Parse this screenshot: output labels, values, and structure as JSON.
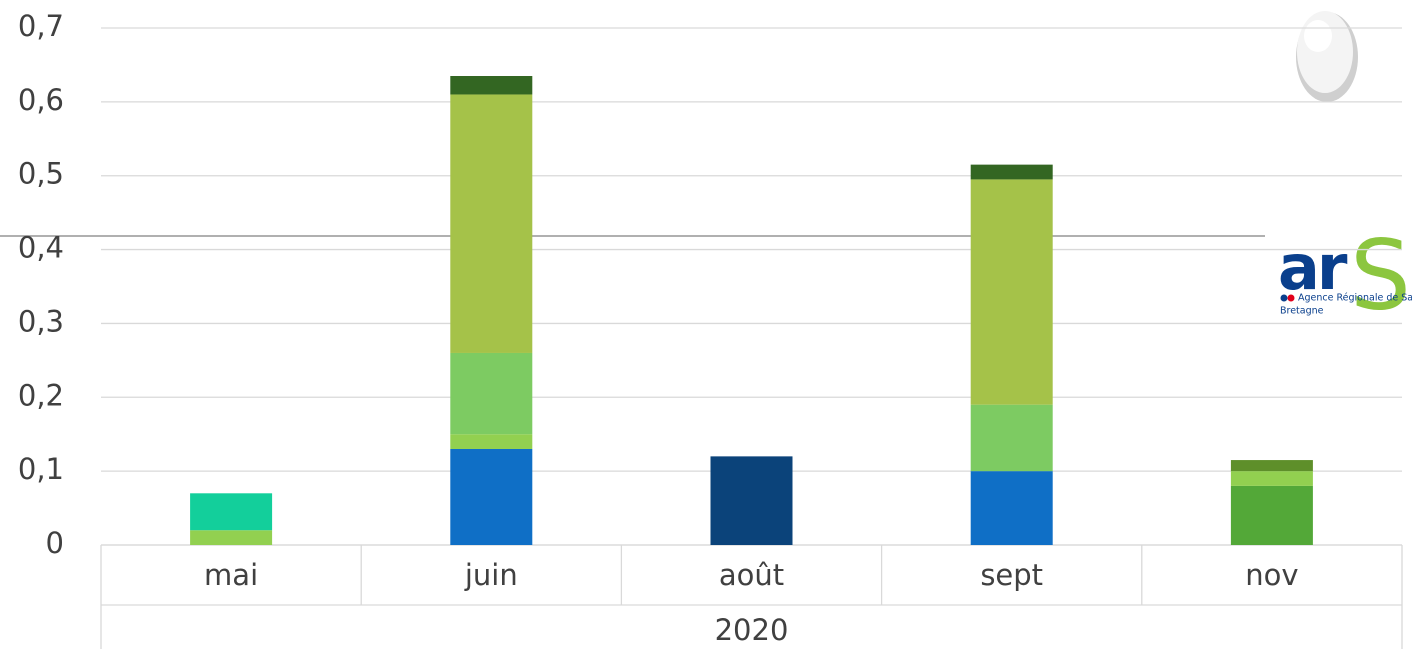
{
  "chart_data": {
    "type": "stacked_bar",
    "categories": [
      "mai",
      "juin",
      "août",
      "sept",
      "nov"
    ],
    "group_label": "2020",
    "series": [
      {
        "color": "#0f6fc6",
        "values": [
          null,
          0.13,
          null,
          0.1,
          null
        ]
      },
      {
        "color": "#0b437a",
        "values": [
          null,
          null,
          0.12,
          null,
          null
        ]
      },
      {
        "color": "#53a838",
        "values": [
          null,
          null,
          null,
          null,
          0.08
        ]
      },
      {
        "color": "#92d050",
        "values": [
          0.02,
          0.02,
          null,
          null,
          0.02
        ]
      },
      {
        "color": "#7dcb62",
        "values": [
          null,
          0.11,
          null,
          0.09,
          null
        ]
      },
      {
        "color": "#13cf9b",
        "values": [
          0.05,
          null,
          null,
          null,
          null
        ]
      },
      {
        "color": "#a5c249",
        "values": [
          null,
          0.35,
          null,
          0.305,
          null
        ]
      },
      {
        "color": "#336622",
        "values": [
          null,
          0.025,
          null,
          0.02,
          null
        ]
      },
      {
        "color": "#5e8f2a",
        "values": [
          null,
          null,
          null,
          null,
          0.015
        ]
      }
    ],
    "ylim": [
      0,
      0.7
    ],
    "yticks": [
      0,
      {
        "value": 0.1,
        "label": "0,1"
      },
      {
        "value": 0.2,
        "label": "0,2"
      },
      {
        "value": 0.3,
        "label": "0,3"
      },
      {
        "value": 0.4,
        "label": "0,4"
      },
      {
        "value": 0.5,
        "label": "0,5"
      },
      {
        "value": 0.6,
        "label": "0,6"
      },
      {
        "value": 0.7,
        "label": "0,7"
      }
    ],
    "grid": true
  },
  "logo": {
    "mark": "ar",
    "mark_end": "S",
    "name": "Agence Régionale de Santé",
    "region": "Bretagne"
  }
}
